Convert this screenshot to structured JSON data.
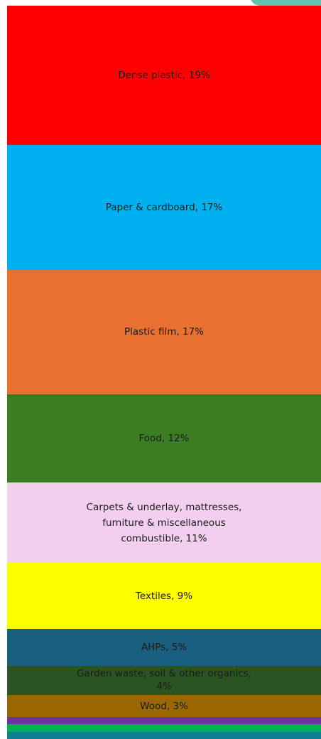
{
  "chart_data": {
    "type": "stacked-column",
    "categories": [
      "Dense plastic, 19%",
      "Paper & cardboard, 17%",
      "Plastic film, 17%",
      "Food, 12%",
      "Carpets & underlay, mattresses, furniture & miscellaneous combustible, 11%",
      "Textiles, 9%",
      "AHPs, 5%",
      "Garden waste, soil & other organics, 4%",
      "Wood, 3%",
      null,
      null,
      null
    ],
    "values": [
      19,
      17,
      17,
      12,
      11,
      9,
      5,
      4,
      3,
      1,
      1,
      1
    ],
    "colors": [
      "#ff0000",
      "#00b0f0",
      "#e97132",
      "#3a7d22",
      "#f2cfee",
      "#ffff00",
      "#1a5e80",
      "#2a5522",
      "#996600",
      "#7030a0",
      "#00b050",
      "#0f7f8f"
    ],
    "ylim": [
      0,
      100
    ]
  }
}
